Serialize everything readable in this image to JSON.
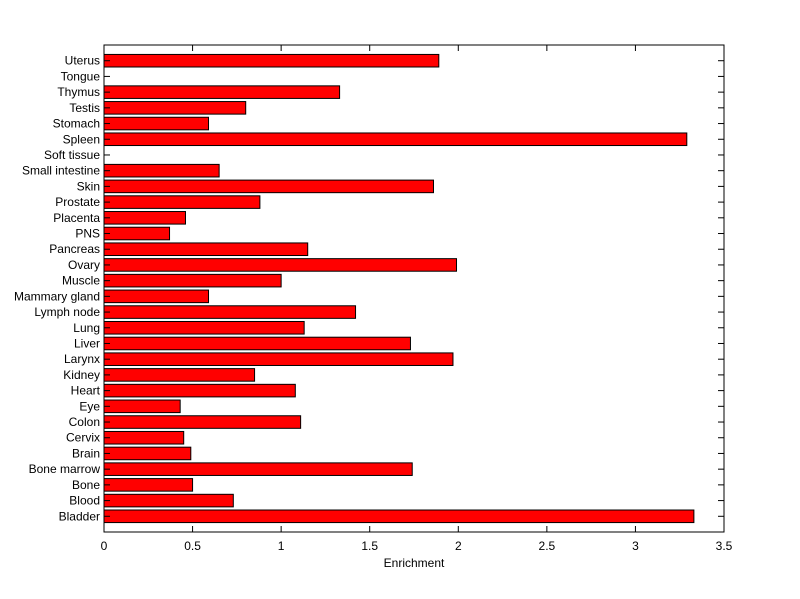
{
  "chart_data": {
    "type": "bar",
    "orientation": "horizontal",
    "categories": [
      "Bladder",
      "Blood",
      "Bone",
      "Bone marrow",
      "Brain",
      "Cervix",
      "Colon",
      "Eye",
      "Heart",
      "Kidney",
      "Larynx",
      "Liver",
      "Lung",
      "Lymph node",
      "Mammary gland",
      "Muscle",
      "Ovary",
      "Pancreas",
      "PNS",
      "Placenta",
      "Prostate",
      "Skin",
      "Small intestine",
      "Soft tissue",
      "Spleen",
      "Stomach",
      "Testis",
      "Thymus",
      "Tongue",
      "Uterus"
    ],
    "values": [
      3.33,
      0.73,
      0.5,
      1.74,
      0.49,
      0.45,
      1.11,
      0.43,
      1.08,
      0.85,
      1.97,
      1.73,
      1.13,
      1.42,
      0.59,
      1.0,
      1.99,
      1.15,
      0.37,
      0.46,
      0.88,
      1.86,
      0.65,
      0.0,
      3.29,
      0.59,
      0.8,
      1.33,
      0.0,
      1.89
    ],
    "xlabel": "Enrichment",
    "ylabel": "",
    "xlim": [
      0,
      3.5
    ],
    "xticks": [
      0,
      0.5,
      1,
      1.5,
      2,
      2.5,
      3,
      3.5
    ],
    "xtick_labels": [
      "0",
      "0.5",
      "1",
      "1.5",
      "2",
      "2.5",
      "3",
      "3.5"
    ],
    "grid": false,
    "colors": {
      "bar_fill": "#ff0000",
      "bar_edge": "#000000",
      "axes": "#000000"
    }
  }
}
